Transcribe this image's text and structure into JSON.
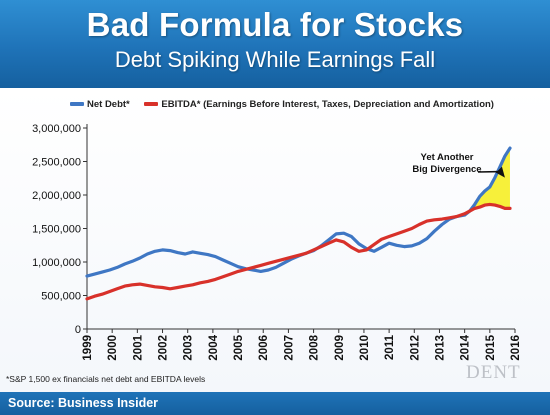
{
  "header": {
    "title": "Bad Formula for Stocks",
    "subtitle": "Debt Spiking While Earnings Fall"
  },
  "footnote": "*S&P 1,500 ex financials net debt and EBITDA levels",
  "watermark": "DENT",
  "source": "Source: Business Insider",
  "colors": {
    "header_bg": "#1f73b8",
    "net_debt": "#3f77c4",
    "ebitda": "#d8312a",
    "divergence_fill": "#f7f03a"
  },
  "chart_data": {
    "type": "line",
    "ylim": [
      0,
      3000000
    ],
    "xlim": [
      1999,
      2016
    ],
    "yticks": [
      "0",
      "500,000",
      "1,000,000",
      "1,500,000",
      "2,000,000",
      "2,500,000",
      "3,000,000"
    ],
    "ytick_values": [
      0,
      500000,
      1000000,
      1500000,
      2000000,
      2500000,
      3000000
    ],
    "xticks": [
      "1999",
      "2000",
      "2001",
      "2002",
      "2003",
      "2004",
      "2005",
      "2006",
      "2007",
      "2008",
      "2009",
      "2010",
      "2011",
      "2012",
      "2013",
      "2014",
      "2015",
      "2016"
    ],
    "xtick_values": [
      1999,
      2000,
      2001,
      2002,
      2003,
      2004,
      2005,
      2006,
      2007,
      2008,
      2009,
      2010,
      2011,
      2012,
      2013,
      2014,
      2015,
      2016
    ],
    "grid": false,
    "legend_position": "top",
    "annotation": {
      "line1": "Yet Another",
      "line2": "Big Divergence",
      "target_x": 2015.6,
      "target_y": 2200000
    },
    "divergence_start": 2014.0,
    "series": [
      {
        "name": "Net Debt*",
        "x": [
          1999.0,
          1999.3,
          1999.6,
          1999.9,
          2000.2,
          2000.5,
          2000.8,
          2001.1,
          2001.4,
          2001.7,
          2002.0,
          2002.3,
          2002.6,
          2002.9,
          2003.2,
          2003.5,
          2003.8,
          2004.1,
          2004.4,
          2004.7,
          2005.0,
          2005.3,
          2005.6,
          2005.9,
          2006.2,
          2006.5,
          2006.8,
          2007.1,
          2007.4,
          2007.7,
          2008.0,
          2008.3,
          2008.6,
          2008.9,
          2009.2,
          2009.5,
          2009.8,
          2010.1,
          2010.4,
          2010.7,
          2011.0,
          2011.3,
          2011.6,
          2011.9,
          2012.2,
          2012.5,
          2012.8,
          2013.1,
          2013.4,
          2013.7,
          2014.0,
          2014.2,
          2014.4,
          2014.6,
          2014.8,
          2015.0,
          2015.2,
          2015.4,
          2015.6,
          2015.8
        ],
        "values": [
          790000,
          820000,
          850000,
          880000,
          920000,
          970000,
          1010000,
          1060000,
          1120000,
          1160000,
          1180000,
          1170000,
          1140000,
          1120000,
          1150000,
          1130000,
          1110000,
          1080000,
          1030000,
          980000,
          930000,
          900000,
          880000,
          860000,
          880000,
          920000,
          980000,
          1040000,
          1090000,
          1130000,
          1170000,
          1240000,
          1330000,
          1420000,
          1430000,
          1380000,
          1270000,
          1200000,
          1160000,
          1220000,
          1280000,
          1250000,
          1230000,
          1240000,
          1280000,
          1350000,
          1460000,
          1560000,
          1640000,
          1680000,
          1700000,
          1760000,
          1860000,
          1980000,
          2060000,
          2120000,
          2260000,
          2420000,
          2580000,
          2700000
        ]
      },
      {
        "name": "EBITDA* (Earnings Before Interest, Taxes, Depreciation and Amortization)",
        "x": [
          1999.0,
          1999.3,
          1999.6,
          1999.9,
          2000.2,
          2000.5,
          2000.8,
          2001.1,
          2001.4,
          2001.7,
          2002.0,
          2002.3,
          2002.6,
          2002.9,
          2003.2,
          2003.5,
          2003.8,
          2004.1,
          2004.4,
          2004.7,
          2005.0,
          2005.3,
          2005.6,
          2005.9,
          2006.2,
          2006.5,
          2006.8,
          2007.1,
          2007.4,
          2007.7,
          2008.0,
          2008.3,
          2008.6,
          2008.9,
          2009.2,
          2009.5,
          2009.8,
          2010.1,
          2010.4,
          2010.7,
          2011.0,
          2011.3,
          2011.6,
          2011.9,
          2012.2,
          2012.5,
          2012.8,
          2013.1,
          2013.4,
          2013.7,
          2014.0,
          2014.2,
          2014.4,
          2014.6,
          2014.8,
          2015.0,
          2015.2,
          2015.4,
          2015.6,
          2015.8
        ],
        "values": [
          450000,
          490000,
          520000,
          560000,
          600000,
          640000,
          660000,
          670000,
          650000,
          630000,
          620000,
          600000,
          620000,
          640000,
          660000,
          690000,
          710000,
          740000,
          780000,
          820000,
          860000,
          890000,
          920000,
          950000,
          980000,
          1010000,
          1040000,
          1070000,
          1100000,
          1130000,
          1180000,
          1230000,
          1280000,
          1330000,
          1300000,
          1220000,
          1160000,
          1180000,
          1260000,
          1340000,
          1380000,
          1420000,
          1460000,
          1500000,
          1560000,
          1610000,
          1630000,
          1640000,
          1660000,
          1680000,
          1720000,
          1760000,
          1800000,
          1820000,
          1850000,
          1860000,
          1850000,
          1830000,
          1800000,
          1800000
        ]
      }
    ]
  }
}
